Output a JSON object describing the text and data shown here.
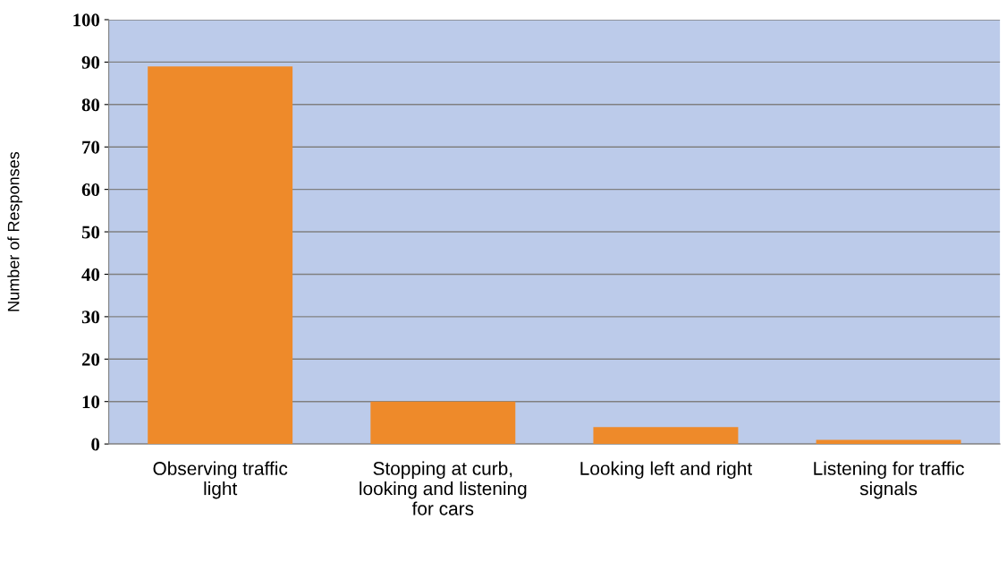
{
  "chart_data": {
    "type": "bar",
    "ylabel": "Number of Responses",
    "categories": [
      "Observing traffic light",
      "Stopping at curb, looking and listening for cars",
      "Looking left and right",
      "Listening for traffic signals"
    ],
    "values": [
      89,
      10,
      4,
      1
    ],
    "color": "#ee8a2a",
    "ylim": [
      0,
      100
    ],
    "yticks": [
      0,
      10,
      20,
      30,
      40,
      50,
      60,
      70,
      80,
      90,
      100
    ],
    "grid": "y"
  }
}
